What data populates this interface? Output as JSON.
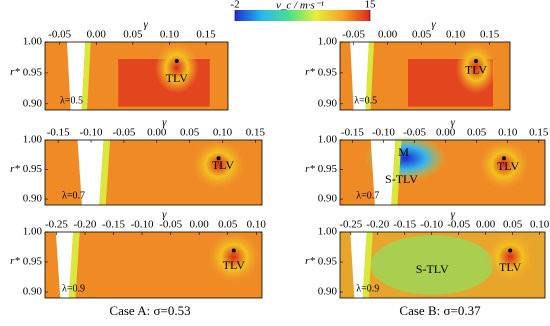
{
  "colorbar": {
    "label": "v_c / m·s⁻¹",
    "lim": [
      -2,
      15
    ],
    "ticks": [
      -2,
      15
    ]
  },
  "chart_data": [
    {
      "type": "contour",
      "xlabel": "γ",
      "ylabel": "r*",
      "xlim": [
        -0.07,
        0.18
      ],
      "ylim": [
        0.89,
        1.0
      ],
      "xticks": [
        -0.05,
        {
          "value": 0,
          "label": "0.00"
        },
        0.05,
        {
          "value": 0.1,
          "label": "0.10"
        },
        0.15
      ],
      "yticks": [
        {
          "value": 1,
          "label": "1.00"
        },
        0.95,
        {
          "value": 0.9,
          "label": "0.90"
        }
      ],
      "lambda": "λ=0.5",
      "annotations": [
        "TLV"
      ]
    },
    {
      "type": "contour",
      "xlabel": "γ",
      "ylabel": "r*",
      "xlim": [
        -0.07,
        0.18
      ],
      "ylim": [
        0.89,
        1.0
      ],
      "xticks": [
        -0.05,
        {
          "value": 0,
          "label": "0.00"
        },
        0.05,
        {
          "value": 0.1,
          "label": "0.10"
        },
        0.15
      ],
      "yticks": [
        {
          "value": 1,
          "label": "1.00"
        },
        0.95,
        {
          "value": 0.9,
          "label": "0.90"
        }
      ],
      "lambda": "λ=0.5",
      "annotations": [
        "TLV"
      ]
    },
    {
      "type": "contour",
      "xlabel": "γ",
      "ylabel": "r*",
      "xlim": [
        -0.17,
        0.16
      ],
      "ylim": [
        0.89,
        1.0
      ],
      "xticks": [
        -0.15,
        {
          "value": -0.1,
          "label": "-0.10"
        },
        -0.05,
        {
          "value": 0,
          "label": "0.00"
        },
        0.05,
        {
          "value": 0.1,
          "label": "0.10"
        },
        0.15
      ],
      "yticks": [
        {
          "value": 1,
          "label": "1.00"
        },
        0.95,
        {
          "value": 0.9,
          "label": "0.90"
        }
      ],
      "lambda": "λ=0.7",
      "annotations": [
        "TLV"
      ]
    },
    {
      "type": "contour",
      "xlabel": "γ",
      "ylabel": "r*",
      "xlim": [
        -0.17,
        0.16
      ],
      "ylim": [
        0.89,
        1.0
      ],
      "xticks": [
        -0.15,
        {
          "value": -0.1,
          "label": "-0.10"
        },
        -0.05,
        {
          "value": 0,
          "label": "0.00"
        },
        0.05,
        {
          "value": 0.1,
          "label": "0.10"
        },
        0.15
      ],
      "yticks": [
        {
          "value": 1,
          "label": "1.00"
        },
        0.95,
        {
          "value": 0.9,
          "label": "0.90"
        }
      ],
      "lambda": "λ=0.7",
      "annotations": [
        "M",
        "S-TLV",
        "TLV"
      ]
    },
    {
      "type": "contour",
      "xlabel": "γ",
      "ylabel": "r*",
      "xlim": [
        -0.27,
        0.11
      ],
      "ylim": [
        0.89,
        1.0
      ],
      "xticks": [
        -0.25,
        {
          "value": -0.2,
          "label": "-0.20"
        },
        -0.15,
        {
          "value": -0.1,
          "label": "-0.10"
        },
        -0.05,
        {
          "value": 0,
          "label": "0.00"
        },
        0.05,
        {
          "value": 0.1,
          "label": "0.10"
        }
      ],
      "yticks": [
        {
          "value": 1,
          "label": "1.00"
        },
        0.95,
        {
          "value": 0.9,
          "label": "0.90"
        }
      ],
      "lambda": "λ=0.9",
      "annotations": [
        "TLV"
      ]
    },
    {
      "type": "contour",
      "xlabel": "γ",
      "ylabel": "r*",
      "xlim": [
        -0.27,
        0.11
      ],
      "ylim": [
        0.89,
        1.0
      ],
      "xticks": [
        -0.25,
        {
          "value": -0.2,
          "label": "-0.20"
        },
        -0.15,
        {
          "value": -0.1,
          "label": "-0.10"
        },
        -0.05,
        {
          "value": 0,
          "label": "0.00"
        },
        0.05,
        {
          "value": 0.1,
          "label": "0.10"
        }
      ],
      "yticks": [
        {
          "value": 1,
          "label": "1.00"
        },
        0.95,
        {
          "value": 0.9,
          "label": "0.90"
        }
      ],
      "lambda": "λ=0.9",
      "annotations": [
        "S-TLV",
        "TLV"
      ]
    }
  ],
  "captions": [
    "Case A: σ=0.53",
    "Case B: σ=0.37"
  ]
}
